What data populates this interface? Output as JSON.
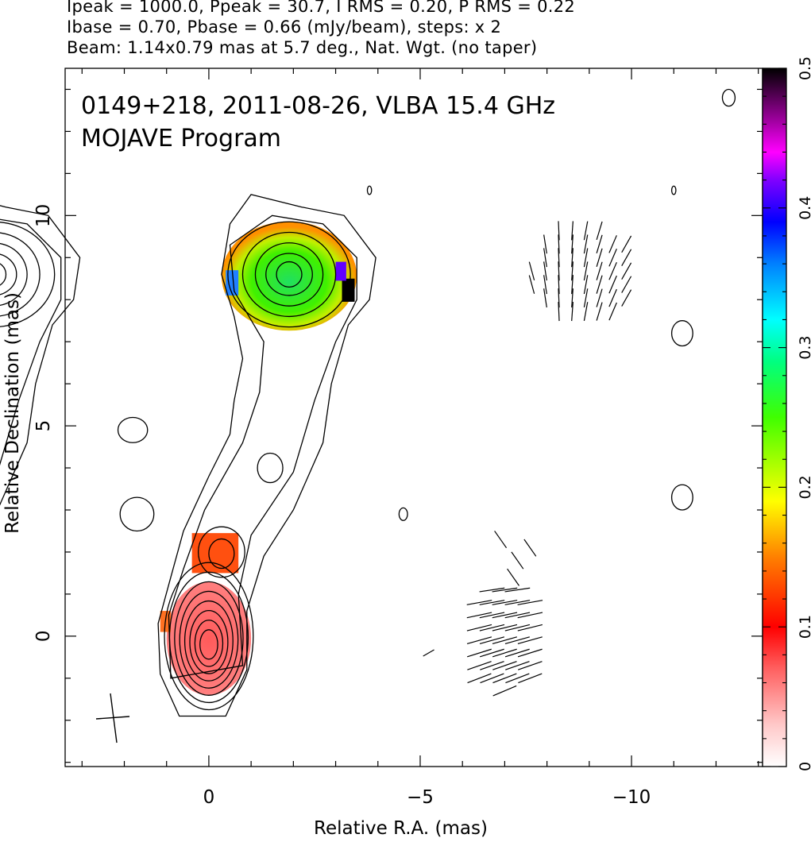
{
  "header": {
    "line1": "Ipeak = 1000.0, Ppeak = 30.7, I RMS = 0.20, P RMS = 0.22",
    "line2": "Ibase = 0.70, Pbase = 0.66 (mJy/beam), steps: x 2",
    "line3": "Beam: 1.14x0.79 mas at 5.7 deg., Nat. Wgt. (no taper)"
  },
  "chart_data": {
    "type": "heatmap",
    "title": "0149+218, 2011-08-26, VLBA 15.4 GHz",
    "subtitle": "MOJAVE Program",
    "xlabel": "Relative R.A. (mas)",
    "ylabel": "Relative Declination (mas)",
    "xlim": [
      3.4,
      -13.1
    ],
    "ylim": [
      -3.1,
      13.5
    ],
    "x_ticks": [
      0,
      -5,
      -10
    ],
    "x_tick_labels": [
      "0",
      "−5",
      "−10"
    ],
    "y_ticks": [
      0,
      5,
      10
    ],
    "y_tick_labels": [
      "0",
      "5",
      "10"
    ],
    "colorbar": {
      "min": 0,
      "max": 0.5,
      "ticks": [
        0,
        0.1,
        0.2,
        0.3,
        0.4,
        0.5
      ],
      "tick_labels": [
        "0",
        "0.1",
        "0.2",
        "0.3",
        "0.4",
        "0.5"
      ]
    },
    "panels": [
      {
        "name": "total intensity + fractional polarization",
        "x_offset": 0
      },
      {
        "name": "polarization vectors",
        "x_offset": -7.0
      }
    ],
    "components": [
      {
        "x": 0.0,
        "y": 0.0,
        "contour_levels": 9,
        "frac_pol": 0.06
      },
      {
        "x": -0.3,
        "y": 2.0,
        "contour_levels": 2,
        "frac_pol": 0.11
      },
      {
        "x": -1.5,
        "y": 4.0,
        "contour_levels": 3
      },
      {
        "x": -1.9,
        "y": 8.6,
        "contour_levels": 6,
        "frac_pol": 0.23
      }
    ],
    "beam": {
      "major": 1.14,
      "minor": 0.79,
      "pa_deg": 5.7
    }
  }
}
